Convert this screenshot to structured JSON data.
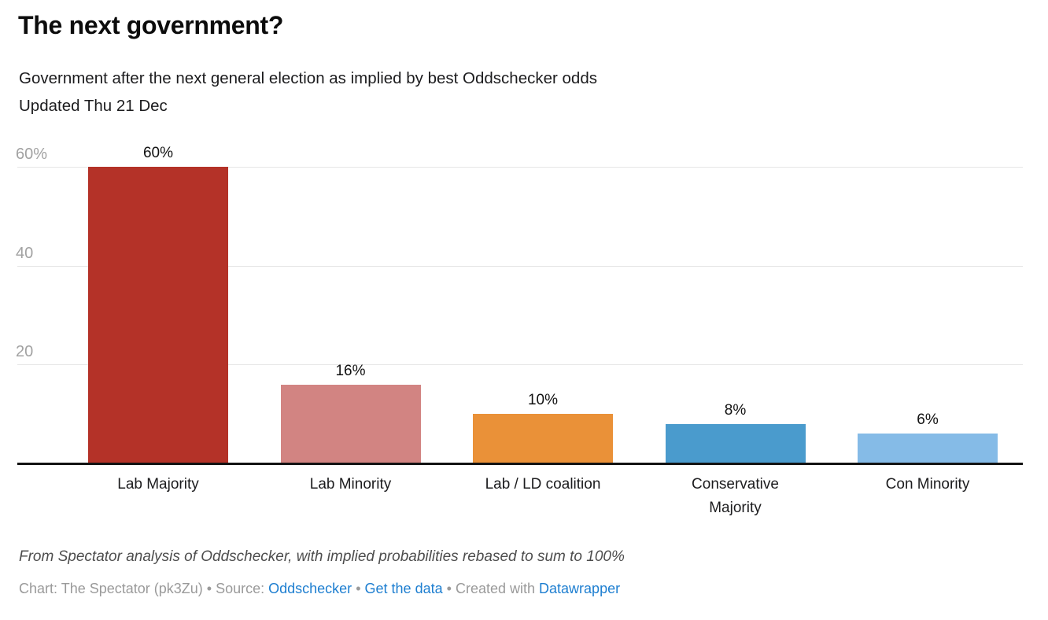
{
  "chart_data": {
    "type": "bar",
    "title": "The next government?",
    "subtitle": "Government after the next general election as implied by best Oddschecker odds",
    "updated": "Updated Thu 21 Dec",
    "categories": [
      "Lab Majority",
      "Lab Minority",
      "Lab / LD coalition",
      "Conservative\nMajority",
      "Con Minority"
    ],
    "values": [
      60,
      16,
      10,
      8,
      6
    ],
    "value_labels": [
      "60%",
      "16%",
      "10%",
      "8%",
      "6%"
    ],
    "bar_colors": [
      "#b43228",
      "#d28482",
      "#ea9138",
      "#4a9bcd",
      "#85bbe7"
    ],
    "xlabel": "",
    "ylabel": "",
    "ylim": [
      0,
      60
    ],
    "yticks": [
      {
        "value": 20,
        "label": "20"
      },
      {
        "value": 40,
        "label": "40"
      },
      {
        "value": 60,
        "label": "60%"
      }
    ],
    "grid": true,
    "legend": "none"
  },
  "colors": {
    "link": "#1d7ed0",
    "grid": "#e6e6e6",
    "axis_text": "#a2a2a2",
    "baseline": "#131313",
    "value_text": "#111111"
  },
  "footer": {
    "note": "From Spectator analysis of Oddschecker, with implied probabilities rebased to sum to 100%",
    "byline_prefix": "Chart: The Spectator (pk3Zu) • Source:",
    "source_link": "Oddschecker",
    "separator": "•",
    "get_data_link": "Get the data",
    "created_with": "Created with",
    "datawrapper_link": "Datawrapper"
  }
}
